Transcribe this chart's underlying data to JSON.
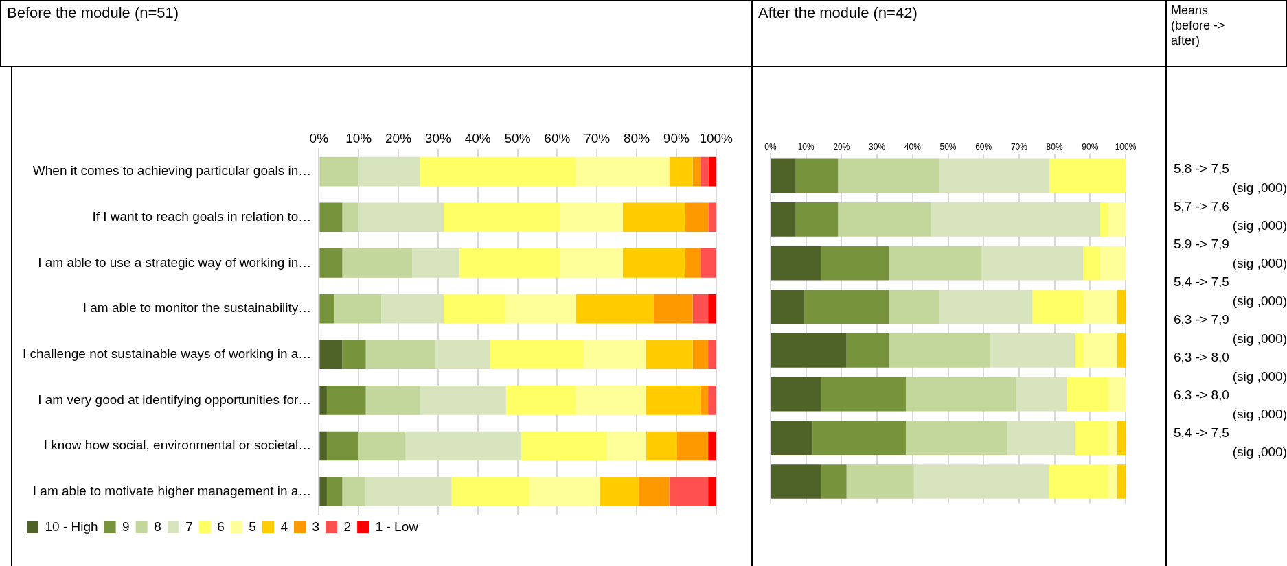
{
  "chart_data": [
    {
      "type": "bar",
      "title": "Before the module (n=51)",
      "orientation": "horizontal",
      "stacked": true,
      "grid": "x",
      "legend": "bottom",
      "categories": [
        "When it comes to achieving particular goals in…",
        "If I want to reach goals in relation to…",
        "I am able to use a strategic way of working in…",
        "I am able to monitor the sustainability…",
        "I challenge not sustainable ways of working in a…",
        "I am very good at identifying opportunities for…",
        "I know how social, environmental or societal…",
        "I am able to motivate higher management in a…"
      ],
      "xlim": [
        0,
        100
      ],
      "xticks": [
        {
          "value": 0,
          "label": "0%"
        },
        {
          "value": 10,
          "label": "10%"
        },
        {
          "value": 20,
          "label": "20%"
        },
        {
          "value": 30,
          "label": "30%"
        },
        {
          "value": 40,
          "label": "40%"
        },
        {
          "value": 50,
          "label": "50%"
        },
        {
          "value": 60,
          "label": "60%"
        },
        {
          "value": 70,
          "label": "70%"
        },
        {
          "value": 80,
          "label": "80%"
        },
        {
          "value": 90,
          "label": "90%"
        },
        {
          "value": 100,
          "label": "100%"
        }
      ],
      "series": [
        {
          "name": "10 - High",
          "color": "#4f6228",
          "values": [
            0,
            0,
            0,
            0,
            5.9,
            2.0,
            2.0,
            2.0
          ]
        },
        {
          "name": "9",
          "color": "#77933c",
          "values": [
            0,
            5.9,
            5.9,
            3.9,
            5.9,
            9.8,
            7.8,
            3.9
          ]
        },
        {
          "name": "8",
          "color": "#c3d69b",
          "values": [
            9.8,
            3.9,
            17.6,
            11.8,
            17.6,
            13.7,
            11.8,
            5.9
          ]
        },
        {
          "name": "7",
          "color": "#d7e4bd",
          "values": [
            15.7,
            21.6,
            11.8,
            15.7,
            13.7,
            21.6,
            29.4,
            21.6
          ]
        },
        {
          "name": "6",
          "color": "#ffff66",
          "values": [
            39.2,
            29.4,
            25.5,
            15.7,
            23.5,
            17.6,
            21.6,
            19.6
          ]
        },
        {
          "name": "5",
          "color": "#ffff99",
          "values": [
            23.5,
            15.7,
            15.7,
            17.6,
            15.7,
            17.6,
            9.8,
            17.6
          ]
        },
        {
          "name": "4",
          "color": "#ffcc00",
          "values": [
            5.9,
            15.7,
            15.7,
            19.6,
            11.8,
            13.7,
            7.8,
            9.8
          ]
        },
        {
          "name": "3",
          "color": "#ff9900",
          "values": [
            2.0,
            5.9,
            3.9,
            9.8,
            3.9,
            2.0,
            7.8,
            7.8
          ]
        },
        {
          "name": "2",
          "color": "#ff5050",
          "values": [
            2.0,
            2.0,
            3.9,
            3.9,
            2.0,
            2.0,
            0,
            9.8
          ]
        },
        {
          "name": "1 - Low",
          "color": "#ff0000",
          "values": [
            2.0,
            0,
            0,
            2.0,
            0,
            0,
            2.0,
            2.0
          ]
        }
      ]
    },
    {
      "type": "bar",
      "title": "After the module (n=42)",
      "orientation": "horizontal",
      "stacked": true,
      "grid": "x",
      "categories": [
        null,
        null,
        null,
        null,
        null,
        null,
        null,
        null
      ],
      "xlim": [
        0,
        100
      ],
      "xticks": [
        {
          "value": 0,
          "label": "0%"
        },
        {
          "value": 10,
          "label": "10%"
        },
        {
          "value": 20,
          "label": "20%"
        },
        {
          "value": 30,
          "label": "30%"
        },
        {
          "value": 40,
          "label": "40%"
        },
        {
          "value": 50,
          "label": "50%"
        },
        {
          "value": 60,
          "label": "60%"
        },
        {
          "value": 70,
          "label": "70%"
        },
        {
          "value": 80,
          "label": "80%"
        },
        {
          "value": 90,
          "label": "90%"
        },
        {
          "value": 100,
          "label": "100%"
        }
      ],
      "series": [
        {
          "color": "#4f6228",
          "values": [
            7.1,
            7.1,
            14.3,
            9.5,
            21.4,
            14.3,
            11.9,
            14.3
          ]
        },
        {
          "color": "#77933c",
          "values": [
            11.9,
            11.9,
            19.0,
            23.8,
            11.9,
            23.8,
            26.2,
            7.1
          ]
        },
        {
          "color": "#c3d69b",
          "values": [
            28.6,
            26.2,
            26.2,
            14.3,
            28.6,
            31.0,
            28.6,
            19.0
          ]
        },
        {
          "color": "#d7e4bd",
          "values": [
            31.0,
            47.6,
            28.6,
            26.2,
            23.8,
            14.3,
            19.0,
            38.1
          ]
        },
        {
          "color": "#ffff66",
          "values": [
            21.4,
            2.4,
            4.8,
            14.3,
            2.4,
            11.9,
            9.5,
            16.7
          ]
        },
        {
          "color": "#ffff99",
          "values": [
            0,
            4.8,
            7.1,
            9.5,
            9.5,
            4.8,
            2.4,
            2.4
          ]
        },
        {
          "color": "#ffcc00",
          "values": [
            0,
            0,
            0,
            2.4,
            2.4,
            0,
            2.4,
            2.4
          ]
        }
      ]
    },
    {
      "type": "other",
      "title": "Means (before -> after)",
      "annotations": [
        "5,8 -> 7,5",
        "(sig ,000)",
        "5,7 -> 7,6",
        "(sig ,000)",
        "5,9 -> 7,9",
        "(sig ,000)",
        "5,4 -> 7,5",
        "(sig ,000)",
        "6,3 -> 7,9",
        "(sig ,000)",
        "6,3 -> 8,0",
        "(sig ,000)",
        "6,3 -> 8,0",
        "(sig ,000)",
        "5,4 -> 7,5",
        "(sig ,000)"
      ]
    }
  ]
}
